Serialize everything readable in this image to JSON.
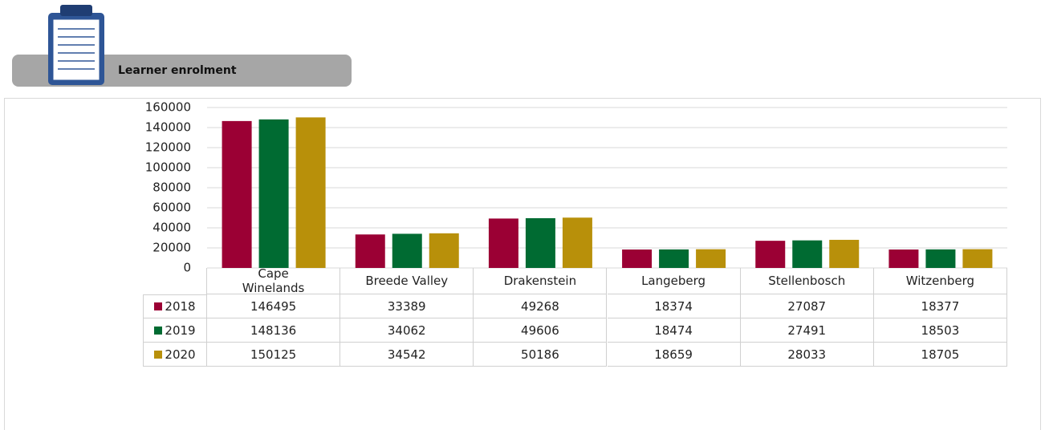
{
  "header": {
    "title": "Learner enrolment"
  },
  "chart_data": {
    "type": "bar",
    "categories": [
      "Cape Winelands",
      "Breede Valley",
      "Drakenstein",
      "Langeberg",
      "Stellenbosch",
      "Witzenberg"
    ],
    "series": [
      {
        "name": "2018",
        "color": "#9b0034",
        "values": [
          146495,
          33389,
          49268,
          18374,
          27087,
          18377
        ]
      },
      {
        "name": "2019",
        "color": "#006b32",
        "values": [
          148136,
          34062,
          49606,
          18474,
          27491,
          18503
        ]
      },
      {
        "name": "2020",
        "color": "#b8900a",
        "values": [
          150125,
          34542,
          50186,
          18659,
          28033,
          18705
        ]
      }
    ],
    "ylim": [
      0,
      160000
    ],
    "yticks": [
      0,
      20000,
      40000,
      60000,
      80000,
      100000,
      120000,
      140000,
      160000
    ],
    "grid": true
  }
}
